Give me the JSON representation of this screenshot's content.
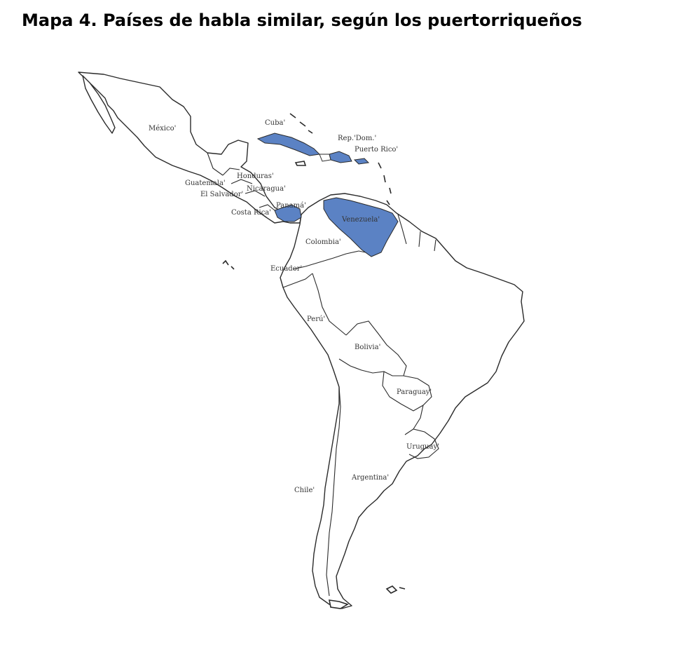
{
  "title": "Mapa 4. Países de habla similar, según los puertorriqueños",
  "highlight_color": "#5b82c4",
  "outline_color": "#2a2a2a",
  "countries": [
    {
      "key": "mexico",
      "label": "México'",
      "highlighted": false
    },
    {
      "key": "cuba",
      "label": "Cuba'",
      "highlighted": true
    },
    {
      "key": "dominican-republic",
      "label": "Rep.'Dom.'",
      "highlighted": true
    },
    {
      "key": "puerto-rico",
      "label": "Puerto Rico'",
      "highlighted": true
    },
    {
      "key": "honduras",
      "label": "Honduras'",
      "highlighted": false
    },
    {
      "key": "guatemala",
      "label": "Guatemala'",
      "highlighted": false
    },
    {
      "key": "el-salvador",
      "label": "El Salvador'",
      "highlighted": false
    },
    {
      "key": "nicaragua",
      "label": "Nicaragua'",
      "highlighted": false
    },
    {
      "key": "panama",
      "label": "Panamá'",
      "highlighted": true
    },
    {
      "key": "costa-rica",
      "label": "Costa Rica'",
      "highlighted": false
    },
    {
      "key": "venezuela",
      "label": "Venezuela'",
      "highlighted": true
    },
    {
      "key": "colombia",
      "label": "Colombia'",
      "highlighted": false
    },
    {
      "key": "ecuador",
      "label": "Ecuador'",
      "highlighted": false
    },
    {
      "key": "peru",
      "label": "Perú'",
      "highlighted": false
    },
    {
      "key": "bolivia",
      "label": "Bolivia'",
      "highlighted": false
    },
    {
      "key": "paraguay",
      "label": "Paraguay'",
      "highlighted": false
    },
    {
      "key": "uruguay",
      "label": "Uruguay'",
      "highlighted": false
    },
    {
      "key": "argentina",
      "label": "Argentina'",
      "highlighted": false
    },
    {
      "key": "chile",
      "label": "Chile'",
      "highlighted": false
    }
  ]
}
